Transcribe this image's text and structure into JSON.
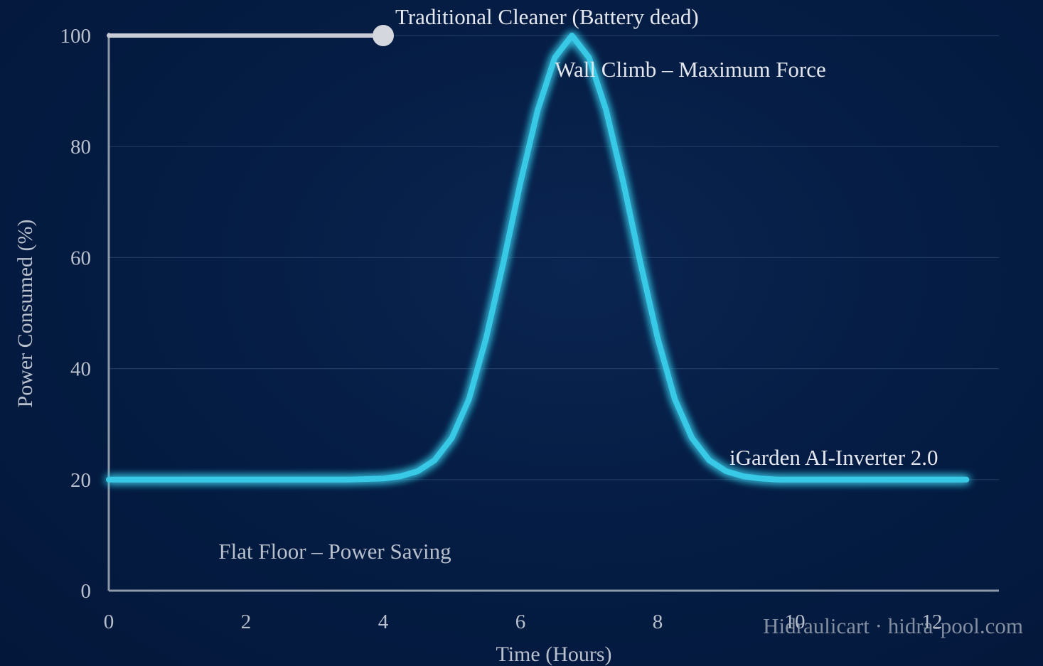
{
  "chart_data": {
    "type": "line",
    "xlabel": "Time (Hours)",
    "ylabel": "Power Consumed (%)",
    "xlim": [
      0,
      13
    ],
    "ylim": [
      0,
      100
    ],
    "x_ticks": [
      "0",
      "2",
      "4",
      "6",
      "8",
      "10",
      "12"
    ],
    "y_ticks": [
      "0",
      "20",
      "40",
      "60",
      "80",
      "100"
    ],
    "grid": true,
    "series": [
      {
        "name": "Traditional Cleaner (Battery dead)",
        "color": "#c9ccd6",
        "x": [
          0,
          4
        ],
        "y": [
          100,
          100
        ],
        "end_marker": true
      },
      {
        "name": "iGarden AI-Inverter 2.0",
        "color": "#37c9e6",
        "glow": true,
        "x": [
          0,
          0.5,
          1,
          1.5,
          2,
          2.5,
          3,
          3.5,
          4,
          4.25,
          4.5,
          4.75,
          5,
          5.25,
          5.5,
          5.75,
          6,
          6.25,
          6.5,
          6.75,
          7,
          7.25,
          7.5,
          7.75,
          8,
          8.25,
          8.5,
          8.75,
          9,
          9.25,
          9.5,
          9.75,
          10,
          10.5,
          11,
          11.5,
          12,
          12.5
        ],
        "y": [
          20,
          20,
          20,
          20,
          20,
          20,
          20,
          20,
          20.2,
          20.6,
          21.5,
          23.5,
          27.5,
          34.5,
          45.5,
          59,
          73.5,
          86.5,
          96,
          100,
          96,
          86.5,
          73.5,
          59,
          45.5,
          34.5,
          27.5,
          23.5,
          21.5,
          20.6,
          20.2,
          20,
          20,
          20,
          20,
          20,
          20,
          20
        ]
      }
    ],
    "annotations": [
      {
        "text": "Wall Climb – Maximum Force",
        "x": 6.5,
        "y": 94
      },
      {
        "text": "Flat Floor – Power Saving",
        "x": 1.6,
        "y": 7.2
      }
    ]
  },
  "watermark": "Hidraulicart · hidra-pool.com"
}
